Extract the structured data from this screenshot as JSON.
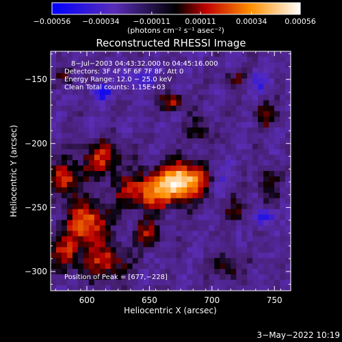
{
  "chart_data": {
    "type": "heatmap",
    "title": "Reconstructed RHESSI Image",
    "xlabel": "Heliocentric X (arcsec)",
    "ylabel": "Heliocentric Y (arcsec)",
    "xlim": [
      571,
      763
    ],
    "ylim": [
      -315,
      -128
    ],
    "xticks": [
      600,
      650,
      700,
      750
    ],
    "xtick_labels": [
      "600",
      "650",
      "700",
      "750"
    ],
    "yticks": [
      -150,
      -200,
      -250,
      -300
    ],
    "ytick_labels": [
      "−150",
      "−200",
      "−250",
      "−300"
    ],
    "colorbar": {
      "range": [
        -0.00056,
        0.00056
      ],
      "ticks": [
        -0.00056,
        -0.00034,
        -0.00011,
        0.00011,
        0.00034,
        0.00056
      ],
      "tick_labels": [
        "−0.00056",
        "−0.00034",
        "−0.00011",
        "0.00011",
        "0.00034",
        "0.00056"
      ],
      "units_label": "(photons cm⁻² s⁻¹ asec⁻²)"
    },
    "info_lines": [
      "8−Jul−2003 04:43:32.000 to 04:45:16.000",
      "Detectors: 3F 4F 5F 6F 7F 8F, Att 0",
      "Energy Range: 12.0 − 25.0 keV",
      "Clean     Total counts: 1.15E+03"
    ],
    "peak_label": "Position of Peak = [677,−228]",
    "peak_position": [
      677,
      -228
    ],
    "blobs": [
      {
        "x": 677,
        "y": -228,
        "amp": 0.00058,
        "sx": 14,
        "sy": 9
      },
      {
        "x": 652,
        "y": -238,
        "amp": 0.00042,
        "sx": 20,
        "sy": 10
      },
      {
        "x": 600,
        "y": -262,
        "amp": 0.00047,
        "sx": 11,
        "sy": 11
      },
      {
        "x": 583,
        "y": -228,
        "amp": 0.00036,
        "sx": 9,
        "sy": 10
      },
      {
        "x": 612,
        "y": -212,
        "amp": 0.00033,
        "sx": 12,
        "sy": 10
      },
      {
        "x": 582,
        "y": -285,
        "amp": 0.0003,
        "sx": 9,
        "sy": 10
      },
      {
        "x": 615,
        "y": -292,
        "amp": 0.00032,
        "sx": 13,
        "sy": 10
      },
      {
        "x": 668,
        "y": -168,
        "amp": 0.00036,
        "sx": 6,
        "sy": 5
      },
      {
        "x": 648,
        "y": -270,
        "amp": 0.00028,
        "sx": 8,
        "sy": 7
      },
      {
        "x": 713,
        "y": -295,
        "amp": 0.00024,
        "sx": 8,
        "sy": 7
      },
      {
        "x": 720,
        "y": -252,
        "amp": 0.0002,
        "sx": 7,
        "sy": 7
      },
      {
        "x": 745,
        "y": -230,
        "amp": 0.0002,
        "sx": 6,
        "sy": 10
      },
      {
        "x": 743,
        "y": -178,
        "amp": 0.00024,
        "sx": 6,
        "sy": 7
      },
      {
        "x": 720,
        "y": -150,
        "amp": 0.00022,
        "sx": 7,
        "sy": 5
      },
      {
        "x": 583,
        "y": -148,
        "amp": 0.00024,
        "sx": 5,
        "sy": 5
      },
      {
        "x": 690,
        "y": -190,
        "amp": 0.0002,
        "sx": 8,
        "sy": 8
      },
      {
        "x": 612,
        "y": -160,
        "amp": -0.00034,
        "sx": 5,
        "sy": 4
      },
      {
        "x": 742,
        "y": -258,
        "amp": -0.0003,
        "sx": 5,
        "sy": 4
      },
      {
        "x": 735,
        "y": -152,
        "amp": -0.00024,
        "sx": 6,
        "sy": 5
      },
      {
        "x": 640,
        "y": -150,
        "amp": -0.00016,
        "sx": 12,
        "sy": 6
      },
      {
        "x": 705,
        "y": -225,
        "amp": -0.00014,
        "sx": 6,
        "sy": 10
      }
    ]
  },
  "footer": {
    "date": "3−May−2022 10:19"
  }
}
